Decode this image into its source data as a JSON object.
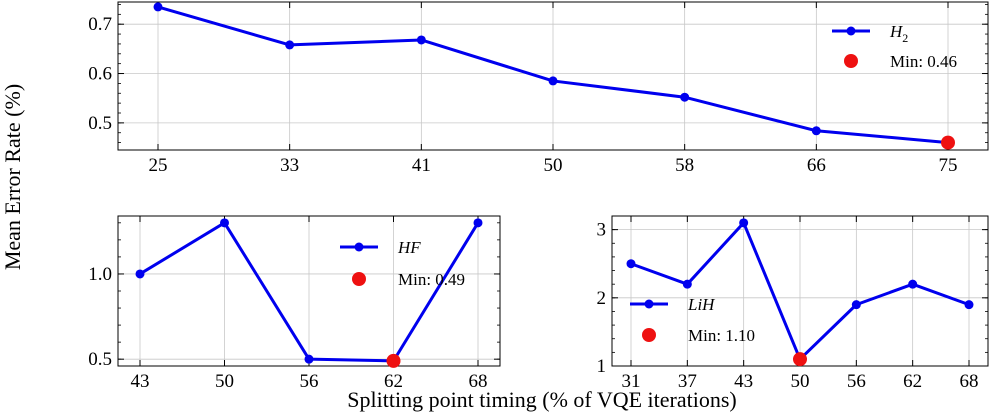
{
  "figure": {
    "ylabel": "Mean Error Rate (%)",
    "xlabel": "Splitting point timing (% of VQE iterations)"
  },
  "chart_data": [
    {
      "type": "line",
      "categories": [
        "25",
        "33",
        "41",
        "50",
        "58",
        "66",
        "75"
      ],
      "series": [
        {
          "name": "H2",
          "values": [
            0.735,
            0.658,
            0.668,
            0.585,
            0.552,
            0.484,
            0.46
          ]
        }
      ],
      "min_marker": {
        "category": "75",
        "value": 0.46,
        "label": "Min: 0.46"
      },
      "ylim": [
        0.445,
        0.745
      ],
      "yticks": [
        "0.5",
        "0.6",
        "0.7"
      ],
      "grid": true,
      "legend": "top-right",
      "colors": {
        "line": "#0000ee",
        "min": "#ee1111"
      }
    },
    {
      "type": "line",
      "categories": [
        "43",
        "50",
        "56",
        "62",
        "68"
      ],
      "series": [
        {
          "name": "HF",
          "values": [
            1.0,
            1.3,
            0.5,
            0.49,
            1.3
          ]
        }
      ],
      "min_marker": {
        "category": "62",
        "value": 0.49,
        "label": "Min: 0.49"
      },
      "ylim": [
        0.46,
        1.34
      ],
      "yticks": [
        "0.5",
        "1.0"
      ],
      "grid": true,
      "legend": "top-right",
      "colors": {
        "line": "#0000ee",
        "min": "#ee1111"
      }
    },
    {
      "type": "line",
      "categories": [
        "31",
        "37",
        "43",
        "50",
        "56",
        "62",
        "68"
      ],
      "series": [
        {
          "name": "LiH",
          "values": [
            2.5,
            2.2,
            3.1,
            1.1,
            1.9,
            2.2,
            1.9
          ]
        }
      ],
      "min_marker": {
        "category": "50",
        "value": 1.1,
        "label": "Min: 1.10"
      },
      "ylim": [
        1.0,
        3.2
      ],
      "yticks": [
        "1",
        "2",
        "3"
      ],
      "grid": true,
      "legend": "center-left",
      "colors": {
        "line": "#0000ee",
        "min": "#ee1111"
      }
    }
  ]
}
